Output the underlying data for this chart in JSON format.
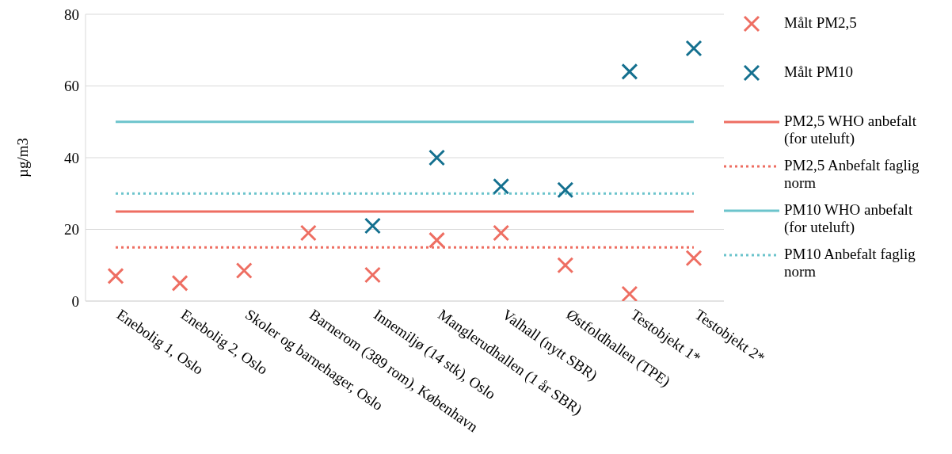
{
  "chart_data": {
    "type": "scatter",
    "ylabel": "µg/m3",
    "categories": [
      "Enebolig 1, Oslo",
      "Enebolig 2, Oslo",
      "Skoler og barnehager, Oslo",
      "Barnerom (389 rom), København",
      "Innemiljø (14 stk), Oslo",
      "Manglerudhallen (1 år SBR)",
      "Valhall (nytt SBR)",
      "Østfoldhallen (TPE)",
      "Testobjekt 1*",
      "Testobjekt 2*"
    ],
    "series": [
      {
        "name": "Målt PM2,5",
        "marker": "cross",
        "color": "#ee6e62",
        "values": [
          7,
          5,
          8.5,
          19,
          7.3,
          17,
          19,
          10,
          2,
          12
        ]
      },
      {
        "name": "Målt PM10",
        "marker": "cross",
        "color": "#14708f",
        "values": [
          null,
          null,
          null,
          null,
          21,
          40,
          32,
          31,
          64,
          70.5
        ]
      },
      {
        "name": "PM2,5 WHO anbefalt (for uteluft)",
        "type": "line",
        "line_style": "solid",
        "color": "#ee6e62",
        "values": [
          25,
          25,
          25,
          25,
          25,
          25,
          25,
          25,
          25,
          25
        ]
      },
      {
        "name": "PM2,5 Anbefalt faglig norm",
        "type": "line",
        "line_style": "dotted",
        "color": "#ee6e62",
        "values": [
          15,
          15,
          15,
          15,
          15,
          15,
          15,
          15,
          15,
          15
        ]
      },
      {
        "name": "PM10 WHO anbefalt (for uteluft)",
        "type": "line",
        "line_style": "solid",
        "color": "#6cc4cc",
        "values": [
          50,
          50,
          50,
          50,
          50,
          50,
          50,
          50,
          50,
          50
        ]
      },
      {
        "name": "PM10 Anbefalt faglig norm",
        "type": "line",
        "line_style": "dotted",
        "color": "#6cc4cc",
        "values": [
          30,
          30,
          30,
          30,
          30,
          30,
          30,
          30,
          30,
          30
        ]
      }
    ],
    "ylim": [
      0,
      80
    ],
    "yticks": [
      0,
      20,
      40,
      60,
      80
    ],
    "grid": "y",
    "legend": "right"
  }
}
